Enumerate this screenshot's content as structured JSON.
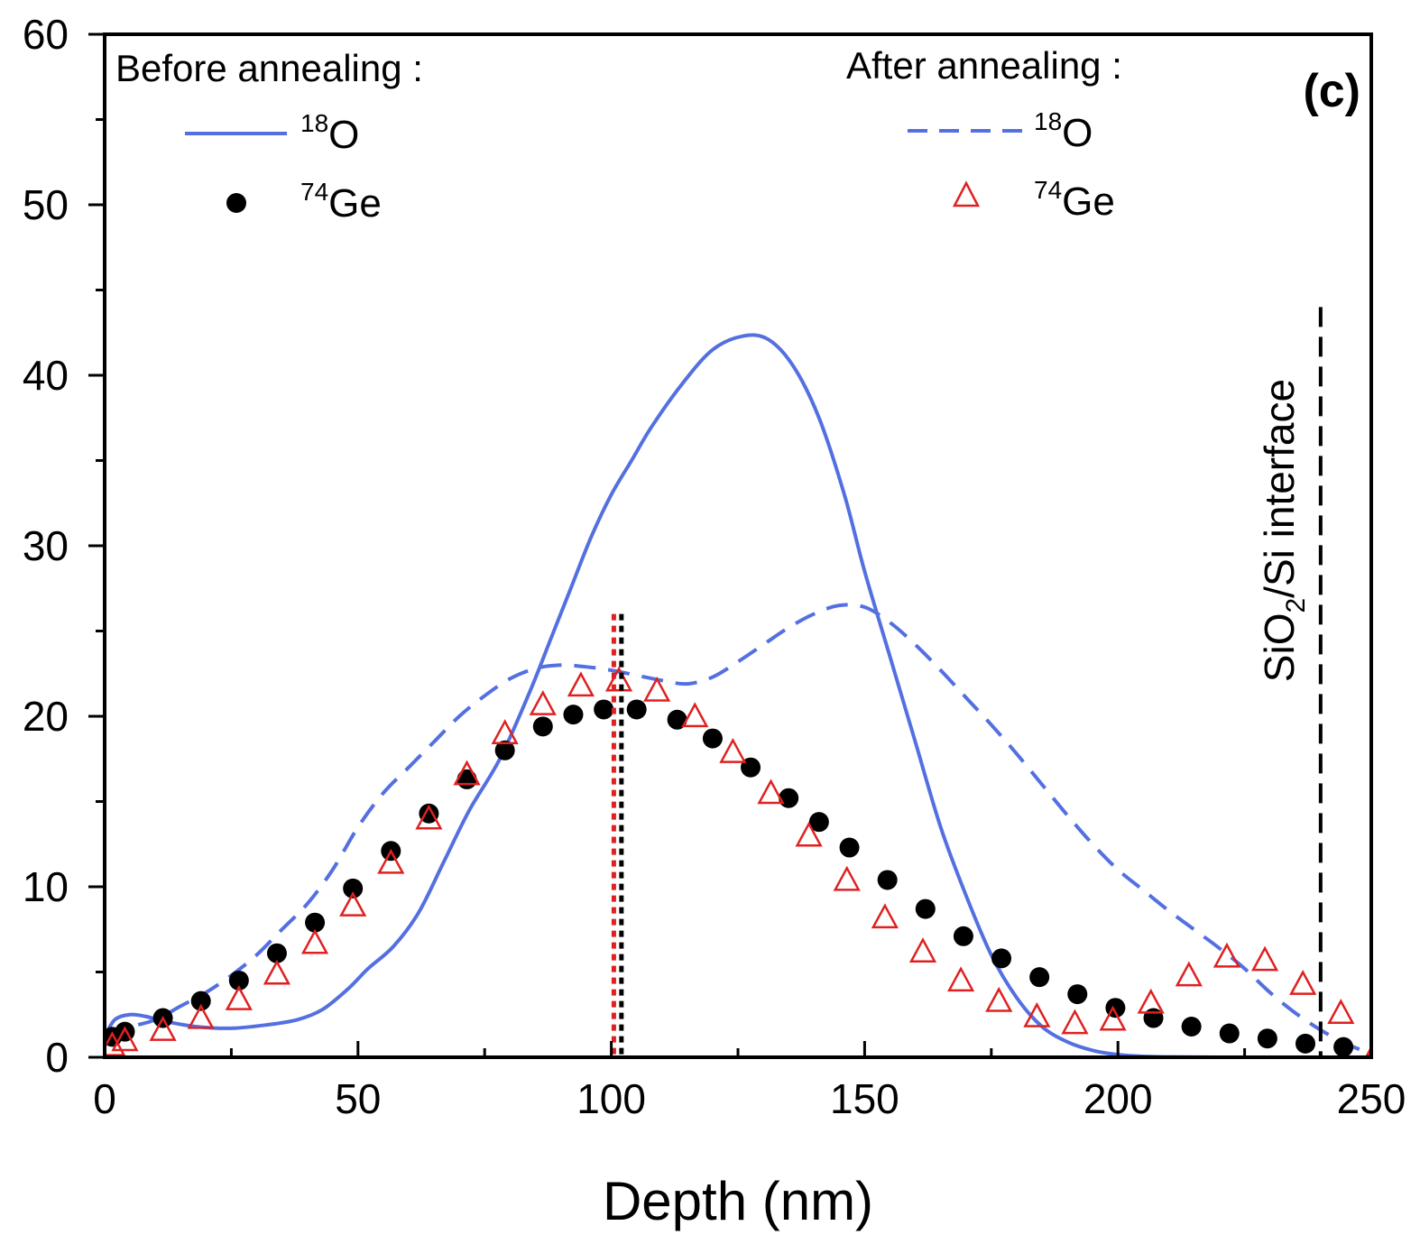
{
  "chart_data": {
    "type": "line",
    "panel_label": "(c)",
    "xlabel": "Depth (nm)",
    "ylabel": "",
    "xlim": [
      0,
      250
    ],
    "ylim": [
      0,
      60
    ],
    "x_ticks": [
      "0",
      "50",
      "100",
      "150",
      "200",
      "250"
    ],
    "y_ticks": [
      "0",
      "10",
      "20",
      "30",
      "40",
      "50",
      "60"
    ],
    "legend": {
      "before_title": "Before annealing :",
      "after_title": "After annealing :",
      "o18_sup": "18",
      "o18_base": "O",
      "ge74_sup": "74",
      "ge74_base": "Ge"
    },
    "annotation": {
      "text_prefix": "SiO",
      "text_sub": "2",
      "text_suffix": "/Si interface",
      "x": 240
    },
    "center_markers": {
      "before_x": 102,
      "after_x": 100.5,
      "y_top": 26
    },
    "series": [
      {
        "id": "o18_before",
        "style": "solid-line",
        "color": "#5470e0",
        "x": [
          0,
          2,
          5,
          8,
          12,
          18,
          25,
          32,
          38,
          43,
          48,
          52,
          57,
          62,
          67,
          72,
          78,
          84,
          88,
          92,
          96,
          100,
          104,
          108,
          114,
          120,
          126,
          131,
          136,
          141,
          146,
          150,
          155,
          160,
          165,
          170,
          175,
          180,
          185,
          190,
          195,
          200,
          205,
          210,
          220,
          235,
          250
        ],
        "y": [
          1.2,
          2.2,
          2.5,
          2.4,
          2.1,
          1.8,
          1.7,
          1.9,
          2.2,
          2.8,
          4.0,
          5.2,
          6.5,
          8.5,
          11.5,
          14.5,
          17.5,
          21.5,
          24.5,
          27.5,
          30.5,
          33.0,
          35.0,
          37.0,
          39.5,
          41.5,
          42.3,
          42.1,
          40.5,
          37.5,
          33.0,
          28.5,
          23.5,
          18.5,
          13.5,
          9.5,
          6.0,
          3.5,
          1.8,
          0.9,
          0.4,
          0.15,
          0.05,
          0.02,
          0,
          0,
          0
        ]
      },
      {
        "id": "o18_after",
        "style": "dashed-line",
        "color": "#5470e0",
        "x": [
          0,
          5,
          10,
          15,
          20,
          25,
          30,
          35,
          40,
          45,
          50,
          55,
          60,
          65,
          70,
          75,
          80,
          85,
          90,
          95,
          100,
          105,
          110,
          115,
          120,
          125,
          130,
          135,
          140,
          145,
          150,
          155,
          160,
          165,
          170,
          175,
          180,
          185,
          190,
          195,
          200,
          205,
          210,
          215,
          220,
          225,
          230,
          235,
          240,
          245,
          250
        ],
        "y": [
          1.5,
          1.8,
          2.2,
          3.0,
          3.8,
          4.8,
          6.0,
          7.5,
          9.0,
          11.0,
          13.5,
          15.5,
          17.0,
          18.5,
          20.0,
          21.2,
          22.2,
          22.8,
          23.0,
          22.9,
          22.7,
          22.4,
          22.1,
          21.9,
          22.3,
          23.2,
          24.2,
          25.2,
          26.0,
          26.5,
          26.4,
          25.5,
          24.2,
          22.7,
          21.1,
          19.5,
          17.8,
          16.0,
          14.2,
          12.5,
          11.0,
          9.8,
          8.6,
          7.5,
          6.4,
          5.2,
          3.8,
          2.6,
          1.6,
          0.8,
          0.2
        ]
      },
      {
        "id": "ge74_before",
        "style": "filled-circle",
        "color": "#000000",
        "x": [
          1.5,
          4,
          11.5,
          19,
          26.5,
          34,
          41.5,
          49,
          56.5,
          64,
          71.5,
          79,
          86.5,
          92.5,
          98.5,
          105,
          113,
          120,
          127.5,
          135,
          141,
          147,
          154.5,
          162,
          169.5,
          177,
          184.5,
          192,
          199.5,
          207,
          214.5,
          222,
          229.5,
          237,
          244.5
        ],
        "y": [
          1.2,
          1.5,
          2.3,
          3.3,
          4.5,
          6.1,
          7.9,
          9.9,
          12.1,
          14.3,
          16.3,
          18.0,
          19.4,
          20.1,
          20.4,
          20.4,
          19.8,
          18.7,
          17.0,
          15.2,
          13.8,
          12.3,
          10.4,
          8.7,
          7.1,
          5.8,
          4.7,
          3.7,
          2.9,
          2.3,
          1.8,
          1.4,
          1.1,
          0.8,
          0.6
        ]
      },
      {
        "id": "ge74_after",
        "style": "open-triangle",
        "color": "#e02020",
        "x": [
          1.5,
          4,
          11.5,
          19,
          26.5,
          34,
          41.5,
          49,
          56.5,
          64,
          71.5,
          79,
          86.5,
          94,
          101.5,
          109,
          116.5,
          124,
          131.5,
          139,
          146.5,
          154,
          161.5,
          169,
          176.5,
          184,
          191.5,
          199,
          206.5,
          214,
          221.5,
          229,
          236.5,
          244,
          251.5
        ],
        "y": [
          0.6,
          0.9,
          1.5,
          2.2,
          3.3,
          4.8,
          6.6,
          8.8,
          11.3,
          13.9,
          16.5,
          18.9,
          20.6,
          21.7,
          22.0,
          21.4,
          19.9,
          17.8,
          15.4,
          12.9,
          10.3,
          8.1,
          6.1,
          4.4,
          3.2,
          2.3,
          1.9,
          2.1,
          3.1,
          4.7,
          5.8,
          5.6,
          4.2,
          2.5,
          0.6
        ]
      }
    ]
  }
}
